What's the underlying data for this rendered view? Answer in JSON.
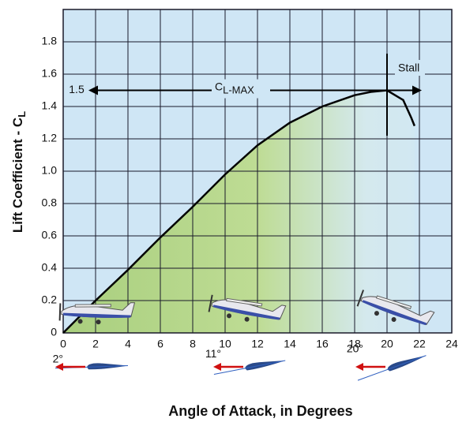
{
  "chart_data": {
    "type": "line",
    "x_label": "Angle of Attack, in Degrees",
    "y_label": "Lift Coefficient - C",
    "y_label_sub": "L",
    "x": [
      0,
      2,
      4,
      6,
      8,
      10,
      12,
      14,
      16,
      18,
      19,
      20,
      21,
      21.5,
      21.7
    ],
    "values": [
      0,
      0.2,
      0.39,
      0.59,
      0.78,
      0.98,
      1.16,
      1.3,
      1.4,
      1.47,
      1.49,
      1.5,
      1.44,
      1.33,
      1.28
    ],
    "color": "#000000",
    "xlim": [
      0,
      24
    ],
    "ylim": [
      0,
      2
    ],
    "xticks": [
      0,
      2,
      4,
      6,
      8,
      10,
      12,
      14,
      16,
      18,
      20,
      22,
      24
    ],
    "yticks": [
      0,
      0.2,
      0.4,
      0.6,
      0.8,
      {
        "value": 1,
        "label": "1.0"
      },
      1.2,
      1.4,
      1.6,
      1.8
    ],
    "grid": true,
    "annotations": {
      "cl_max_value": {
        "value": 1.5,
        "label": "1.5"
      },
      "cl_max_text": "C",
      "cl_max_sub": "L-MAX",
      "stall_angle": 20,
      "stall_text": "Stall"
    },
    "diagrams": [
      {
        "label": "2°",
        "angle": 2
      },
      {
        "label": "11°",
        "angle": 11
      },
      {
        "label": "20°",
        "angle": 20
      }
    ]
  }
}
